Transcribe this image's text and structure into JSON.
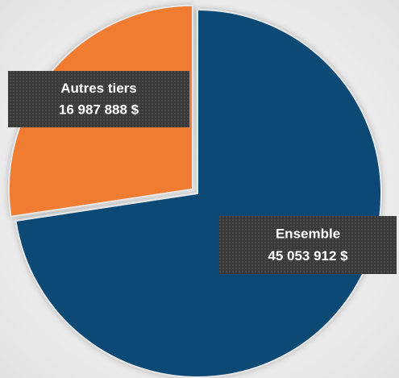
{
  "chart_data": {
    "type": "pie",
    "categories": [
      "Ensemble",
      "Autres tiers"
    ],
    "values": [
      45053912,
      16987888
    ],
    "value_labels": [
      "45 053 912 $",
      "16 987 888 $"
    ],
    "colors": [
      "#0b4a75",
      "#f07b32"
    ],
    "explode": [
      false,
      true
    ]
  }
}
